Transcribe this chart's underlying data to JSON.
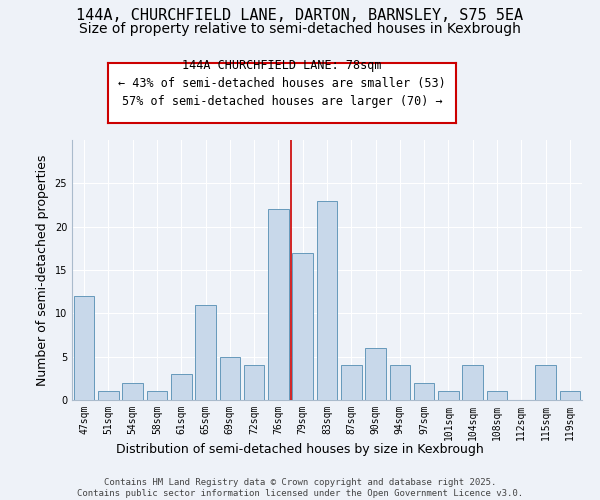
{
  "title_line1": "144A, CHURCHFIELD LANE, DARTON, BARNSLEY, S75 5EA",
  "title_line2": "Size of property relative to semi-detached houses in Kexbrough",
  "xlabel": "Distribution of semi-detached houses by size in Kexbrough",
  "ylabel": "Number of semi-detached properties",
  "categories": [
    "47sqm",
    "51sqm",
    "54sqm",
    "58sqm",
    "61sqm",
    "65sqm",
    "69sqm",
    "72sqm",
    "76sqm",
    "79sqm",
    "83sqm",
    "87sqm",
    "90sqm",
    "94sqm",
    "97sqm",
    "101sqm",
    "104sqm",
    "108sqm",
    "112sqm",
    "115sqm",
    "119sqm"
  ],
  "values": [
    12,
    1,
    2,
    1,
    3,
    11,
    5,
    4,
    22,
    17,
    23,
    4,
    6,
    4,
    2,
    1,
    4,
    1,
    0,
    4,
    1
  ],
  "bar_color": "#c8d8ea",
  "bar_edge_color": "#6699bb",
  "annotation_text": "144A CHURCHFIELD LANE: 78sqm\n← 43% of semi-detached houses are smaller (53)\n57% of semi-detached houses are larger (70) →",
  "annotation_box_color": "white",
  "annotation_box_edge_color": "#cc0000",
  "vline_color": "#cc0000",
  "vline_x_index": 8.5,
  "ylim": [
    0,
    30
  ],
  "yticks": [
    0,
    5,
    10,
    15,
    20,
    25
  ],
  "background_color": "#eef2f8",
  "grid_color": "#ffffff",
  "footer_text": "Contains HM Land Registry data © Crown copyright and database right 2025.\nContains public sector information licensed under the Open Government Licence v3.0.",
  "title_fontsize": 11,
  "subtitle_fontsize": 10,
  "axis_label_fontsize": 9,
  "tick_fontsize": 7,
  "annotation_fontsize": 8.5,
  "footer_fontsize": 6.5
}
